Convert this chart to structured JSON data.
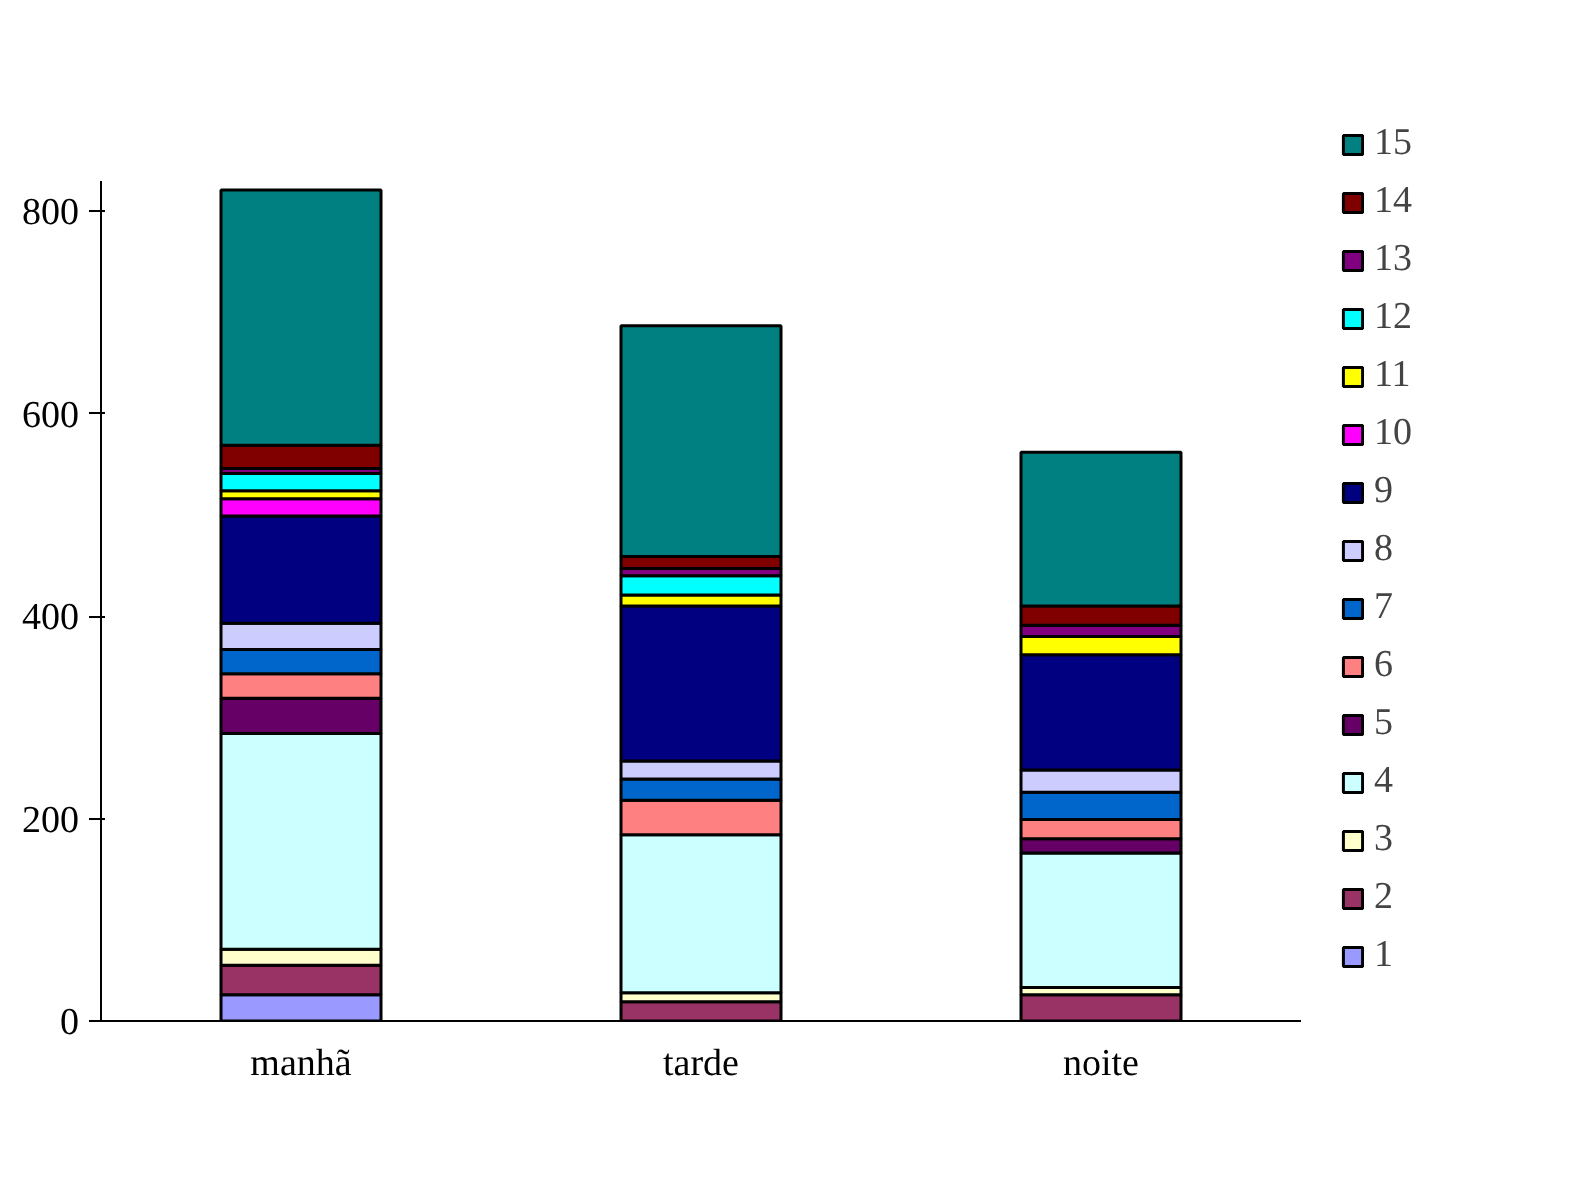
{
  "chart_data": {
    "type": "bar",
    "stacked": true,
    "categories": [
      "manhã",
      "tarde",
      "noite"
    ],
    "ylim": [
      0,
      830
    ],
    "yticks": [
      0,
      200,
      400,
      600,
      800
    ],
    "grid": false,
    "legend": "right",
    "series": [
      {
        "name": "1",
        "color": "#9999ff",
        "values": [
          26,
          null,
          null
        ]
      },
      {
        "name": "2",
        "color": "#993366",
        "values": [
          29,
          19,
          26
        ]
      },
      {
        "name": "3",
        "color": "#ffffcc",
        "values": [
          16,
          9,
          7
        ]
      },
      {
        "name": "4",
        "color": "#ccffff",
        "values": [
          213,
          156,
          133
        ]
      },
      {
        "name": "5",
        "color": "#660066",
        "values": [
          35,
          null,
          14
        ]
      },
      {
        "name": "6",
        "color": "#ff8080",
        "values": [
          24,
          34,
          19
        ]
      },
      {
        "name": "7",
        "color": "#0066cc",
        "values": [
          24,
          21,
          27
        ]
      },
      {
        "name": "8",
        "color": "#ccccff",
        "values": [
          26,
          18,
          22
        ]
      },
      {
        "name": "9",
        "color": "#000080",
        "values": [
          106,
          153,
          114
        ]
      },
      {
        "name": "10",
        "color": "#ff00ff",
        "values": [
          17,
          0,
          0
        ]
      },
      {
        "name": "11",
        "color": "#ffff00",
        "values": [
          8,
          11,
          18
        ]
      },
      {
        "name": "12",
        "color": "#00ffff",
        "values": [
          17,
          19,
          0
        ]
      },
      {
        "name": "13",
        "color": "#800080",
        "values": [
          5,
          7,
          11
        ]
      },
      {
        "name": "14",
        "color": "#800000",
        "values": [
          23,
          12,
          19
        ]
      },
      {
        "name": "15",
        "color": "#008080",
        "values": [
          252,
          228,
          152
        ]
      }
    ]
  }
}
